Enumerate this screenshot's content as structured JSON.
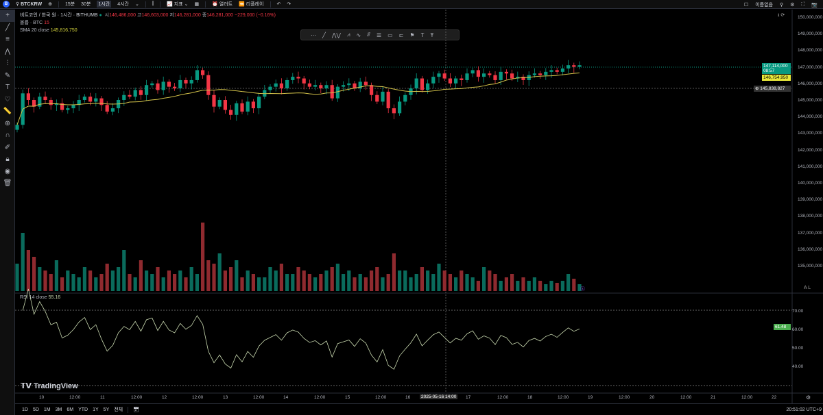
{
  "topbar": {
    "avatar": "B",
    "symbol": "BTCKRW",
    "intervals": [
      "15분",
      "30분",
      "1시간",
      "4시간"
    ],
    "selected_interval": "1시간",
    "indicators": "지표",
    "alert": "얼러트",
    "replay": "리플레이",
    "layout_name": "이름없음"
  },
  "legend": {
    "title": "비트코인 / 한국 원 · 1시간 · BITHUMB",
    "o_label": "시",
    "o": "146,486,000",
    "h_label": "고",
    "h": "146,603,000",
    "l_label": "저",
    "l": "146,281,000",
    "c_label": "종",
    "c": "146,281,000",
    "change": "−229,000 (−0.16%)",
    "volume_label": "볼륨 · BTC",
    "volume": "15",
    "sma_label": "SMA 20 close",
    "sma": "145,816,750",
    "rsi_label": "RSI 14 close",
    "rsi": "55.16"
  },
  "price_axis": [
    "150,000,000",
    "149,000,000",
    "148,000,000",
    "147,000,000",
    "146,000,000",
    "145,000,000",
    "144,000,000",
    "143,000,000",
    "142,000,000",
    "141,000,000",
    "140,000,000",
    "139,000,000",
    "138,000,000",
    "137,000,000",
    "136,000,000",
    "135,000,000"
  ],
  "tags": {
    "last": "147,114,000",
    "countdown": "08:57",
    "sma": "146,754,950",
    "crosshair": "145,838,827",
    "rsi": "61.48"
  },
  "rsi_axis": [
    "70.00",
    "60.00",
    "50.00",
    "40.00"
  ],
  "time_axis": [
    "10",
    "12:00",
    "11",
    "12:00",
    "12",
    "12:00",
    "13",
    "12:00",
    "14",
    "12:00",
    "15",
    "12:00",
    "16",
    "2025-05-16  14:00",
    "17",
    "12:00",
    "18",
    "12:00",
    "19",
    "12:00",
    "20",
    "12:00",
    "21",
    "12:00",
    "22"
  ],
  "bottombar": {
    "ranges": [
      "1D",
      "5D",
      "1M",
      "3M",
      "6M",
      "YTD",
      "1Y",
      "5Y",
      "전체"
    ],
    "clock": "20:51:02 UTC+9"
  },
  "brand": "TradingView",
  "colors": {
    "up": "#089981",
    "down": "#f23645",
    "sma": "#d4c34a",
    "rsi": "#c9d9b0"
  },
  "chart_data": {
    "type": "candlestick",
    "unit": "KRW millions",
    "closes": [
      143.5,
      145.4,
      145.0,
      144.6,
      145.2,
      145.0,
      144.7,
      144.8,
      144.4,
      144.5,
      144.7,
      145.0,
      145.2,
      144.9,
      145.1,
      144.7,
      144.3,
      144.5,
      145.0,
      145.3,
      145.2,
      145.6,
      145.3,
      145.9,
      146.0,
      145.6,
      146.1,
      145.8,
      145.7,
      146.2,
      146.0,
      146.2,
      146.8,
      146.5,
      145.3,
      144.6,
      145.0,
      144.4,
      144.1,
      144.8,
      144.3,
      144.9,
      144.5,
      145.2,
      145.6,
      145.8,
      146.0,
      145.7,
      146.2,
      146.4,
      146.3,
      146.0,
      145.8,
      145.9,
      145.7,
      145.9,
      145.1,
      145.8,
      145.9,
      146.0,
      145.7,
      146.1,
      145.9,
      145.3,
      144.9,
      145.5,
      144.5,
      144.2,
      144.9,
      145.3,
      145.7,
      146.3,
      145.6,
      146.0,
      146.4,
      146.6,
      146.3,
      146.0,
      146.3,
      146.2,
      146.6,
      146.8,
      146.4,
      146.6,
      146.5,
      146.2,
      146.7,
      146.6,
      146.3,
      146.4,
      146.2,
      146.5,
      146.6,
      146.5,
      146.7,
      146.8,
      146.7,
      146.9,
      147.1,
      147.0,
      147.1
    ],
    "volumes": [
      40,
      85,
      60,
      50,
      35,
      30,
      25,
      45,
      20,
      30,
      25,
      20,
      35,
      30,
      20,
      25,
      40,
      30,
      35,
      60,
      25,
      20,
      45,
      30,
      25,
      35,
      20,
      30,
      25,
      30,
      20,
      35,
      25,
      100,
      45,
      40,
      55,
      30,
      35,
      45,
      20,
      30,
      25,
      20,
      20,
      35,
      30,
      40,
      25,
      25,
      35,
      30,
      25,
      20,
      25,
      30,
      35,
      40,
      25,
      30,
      20,
      25,
      20,
      30,
      35,
      20,
      25,
      55,
      30,
      30,
      20,
      25,
      35,
      30,
      25,
      40,
      30,
      25,
      20,
      30,
      25,
      20,
      15,
      35,
      30,
      25,
      15,
      20,
      25,
      15,
      20,
      15,
      20,
      15,
      10,
      15,
      12,
      15,
      25,
      18,
      10
    ]
  }
}
